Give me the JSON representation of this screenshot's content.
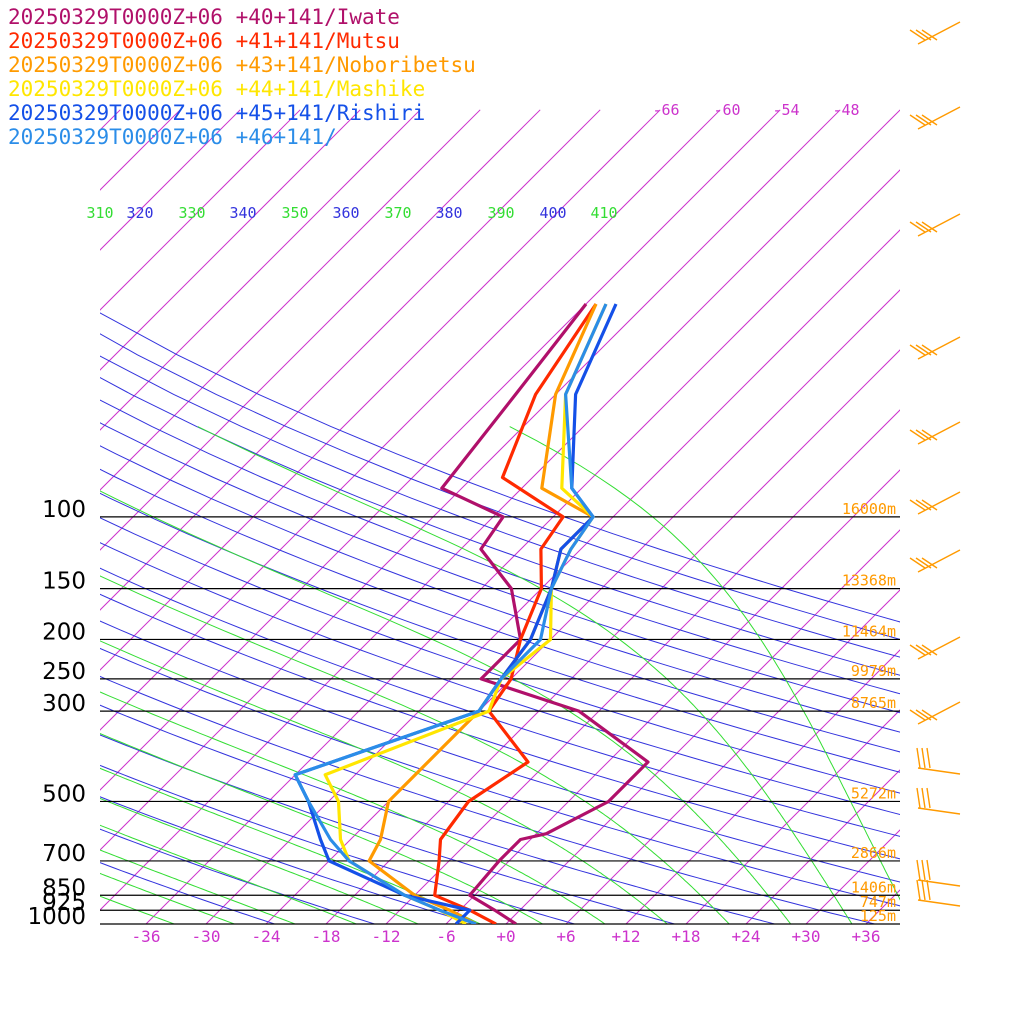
{
  "chart_data": {
    "type": "skew-t",
    "grid": true,
    "legend_placement": "top-left",
    "series": [
      {
        "name": "20250329T0000Z+06 +40+141/Iwate",
        "color": "#b0106a",
        "values": [
          [
            1000,
            1
          ],
          [
            925,
            -2.5
          ],
          [
            850,
            -6.5
          ],
          [
            700,
            -7
          ],
          [
            620,
            -7
          ],
          [
            600,
            -5
          ],
          [
            500,
            -2
          ],
          [
            400,
            -2
          ],
          [
            300,
            -14
          ],
          [
            250,
            -27
          ],
          [
            200,
            -27
          ],
          [
            150,
            -33
          ],
          [
            120,
            -40
          ],
          [
            100,
            -41
          ],
          [
            85,
            -50
          ],
          [
            50,
            -52
          ],
          [
            30,
            -54
          ]
        ]
      },
      {
        "name": "20250329T0000Z+06 +41+141/Mutsu",
        "color": "#ff2a00",
        "values": [
          [
            1000,
            -1
          ],
          [
            925,
            -5
          ],
          [
            850,
            -10
          ],
          [
            700,
            -13
          ],
          [
            620,
            -15
          ],
          [
            500,
            -16
          ],
          [
            400,
            -14
          ],
          [
            300,
            -23
          ],
          [
            250,
            -24
          ],
          [
            200,
            -27
          ],
          [
            150,
            -30
          ],
          [
            120,
            -34
          ],
          [
            100,
            -35
          ],
          [
            80,
            -45
          ],
          [
            50,
            -50
          ],
          [
            30,
            -53
          ]
        ]
      },
      {
        "name": "20250329T0000Z+06 +43+141/Noboribetsu",
        "color": "#ff9a00",
        "values": [
          [
            1000,
            -3
          ],
          [
            925,
            -7
          ],
          [
            850,
            -12
          ],
          [
            700,
            -20
          ],
          [
            620,
            -21
          ],
          [
            500,
            -24
          ],
          [
            400,
            -24
          ],
          [
            300,
            -24
          ],
          [
            250,
            -25
          ],
          [
            200,
            -26
          ],
          [
            150,
            -29
          ],
          [
            120,
            -32
          ],
          [
            100,
            -32
          ],
          [
            85,
            -40
          ],
          [
            50,
            -48
          ],
          [
            30,
            -53
          ]
        ]
      },
      {
        "name": "20250329T0000Z+06 +44+141/Mashike",
        "color": "#ffe600",
        "values": [
          [
            1000,
            -4
          ],
          [
            925,
            -8
          ],
          [
            850,
            -13
          ],
          [
            700,
            -22
          ],
          [
            620,
            -25
          ],
          [
            500,
            -29
          ],
          [
            430,
            -33
          ],
          [
            300,
            -23
          ],
          [
            250,
            -25
          ],
          [
            200,
            -24
          ],
          [
            150,
            -29
          ],
          [
            120,
            -31
          ],
          [
            100,
            -32
          ],
          [
            85,
            -38
          ],
          [
            50,
            -47
          ],
          [
            30,
            -52
          ]
        ]
      },
      {
        "name": "20250329T0000Z+06 +45+141/Rishiri",
        "color": "#1450e8",
        "values": [
          [
            1000,
            -5
          ],
          [
            925,
            -5
          ],
          [
            850,
            -13
          ],
          [
            700,
            -24
          ],
          [
            620,
            -27
          ],
          [
            500,
            -32
          ],
          [
            430,
            -36
          ],
          [
            300,
            -24
          ],
          [
            250,
            -25
          ],
          [
            200,
            -26
          ],
          [
            150,
            -29
          ],
          [
            120,
            -32
          ],
          [
            100,
            -32
          ],
          [
            85,
            -37
          ],
          [
            50,
            -46
          ],
          [
            30,
            -51
          ]
        ]
      },
      {
        "name": "20250329T0000Z+06 +46+141/",
        "color": "#2b8de8",
        "values": [
          [
            1000,
            -3
          ],
          [
            925,
            -8
          ],
          [
            850,
            -13
          ],
          [
            700,
            -22
          ],
          [
            620,
            -26
          ],
          [
            500,
            -32
          ],
          [
            430,
            -36
          ],
          [
            300,
            -24
          ],
          [
            250,
            -25
          ],
          [
            200,
            -25
          ],
          [
            150,
            -29
          ],
          [
            120,
            -31
          ],
          [
            100,
            -32
          ],
          [
            85,
            -37
          ],
          [
            50,
            -47
          ],
          [
            30,
            -52
          ]
        ]
      }
    ],
    "pressure_levels": [
      {
        "p": 100,
        "label": "100",
        "height": "16000m"
      },
      {
        "p": 150,
        "label": "150",
        "height": "13368m"
      },
      {
        "p": 200,
        "label": "200",
        "height": "11464m"
      },
      {
        "p": 250,
        "label": "250",
        "height": "9979m"
      },
      {
        "p": 300,
        "label": "300",
        "height": "8765m"
      },
      {
        "p": 500,
        "label": "500",
        "height": "5272m"
      },
      {
        "p": 700,
        "label": "700",
        "height": "2866m"
      },
      {
        "p": 850,
        "label": "850",
        "height": "1406m"
      },
      {
        "p": 925,
        "label": "925",
        "height": "747m"
      },
      {
        "p": 1000,
        "label": "1000",
        "height": "125m"
      }
    ],
    "x_ticks": [
      "-36",
      "-30",
      "-24",
      "-18",
      "-12",
      "-6",
      "+0",
      "+6",
      "+12",
      "+18",
      "+24",
      "+30",
      "+36"
    ],
    "theta_labels": [
      "310",
      "320",
      "330",
      "340",
      "350",
      "360",
      "370",
      "380",
      "390",
      "400",
      "410"
    ],
    "upper_temp_labels": [
      "-66",
      "-60",
      "-54",
      "-48"
    ],
    "colors": {
      "isotherm": "#cc33cc",
      "dry_adiabat": "#3333dd",
      "moist_adiabat": "#33dd33",
      "height_label": "#ff9a00",
      "wind_barb": "#ff9a00"
    }
  }
}
